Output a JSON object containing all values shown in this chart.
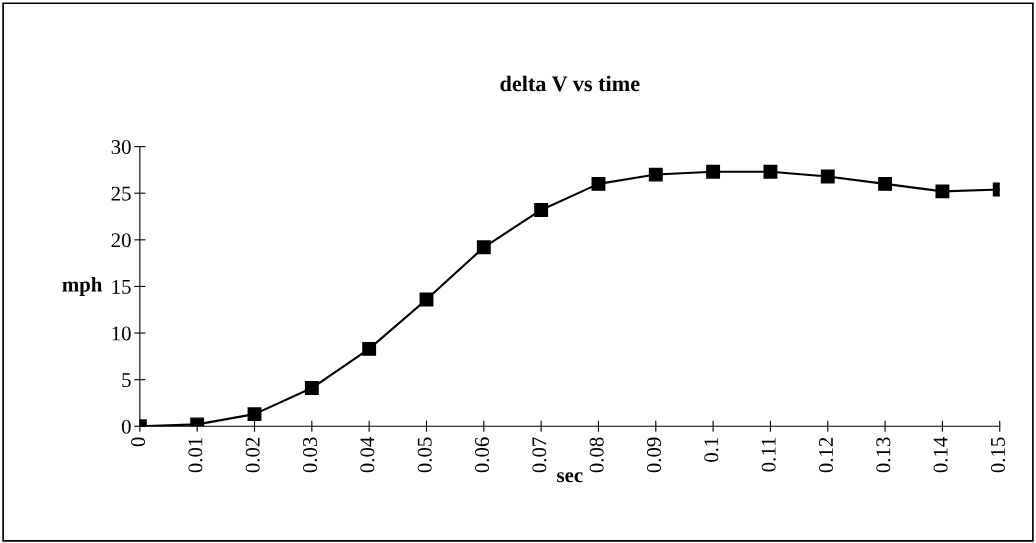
{
  "chart_data": {
    "type": "line",
    "title": "delta V vs time",
    "xlabel": "sec",
    "ylabel": "mph",
    "x": [
      0,
      0.01,
      0.02,
      0.03,
      0.04,
      0.05,
      0.06,
      0.07,
      0.08,
      0.09,
      0.1,
      0.11,
      0.12,
      0.13,
      0.14,
      0.15
    ],
    "series": [
      {
        "color": "#000000",
        "values": [
          0,
          0.2,
          1.3,
          4.1,
          8.3,
          13.6,
          19.2,
          23.2,
          26.0,
          27.0,
          27.3,
          27.3,
          26.8,
          26.0,
          25.2,
          25.4
        ]
      }
    ],
    "xlim": [
      0,
      0.15
    ],
    "xticks": [
      0,
      0.01,
      0.02,
      0.03,
      0.04,
      0.05,
      0.06,
      0.07,
      0.08,
      0.09,
      0.1,
      0.11,
      0.12,
      0.13,
      0.14,
      0.15
    ],
    "ylim": [
      0,
      30
    ],
    "yticks": [
      0,
      5,
      10,
      15,
      20,
      25,
      30
    ],
    "marker": "square",
    "line_style": "solid",
    "grid": false,
    "legend": false
  }
}
